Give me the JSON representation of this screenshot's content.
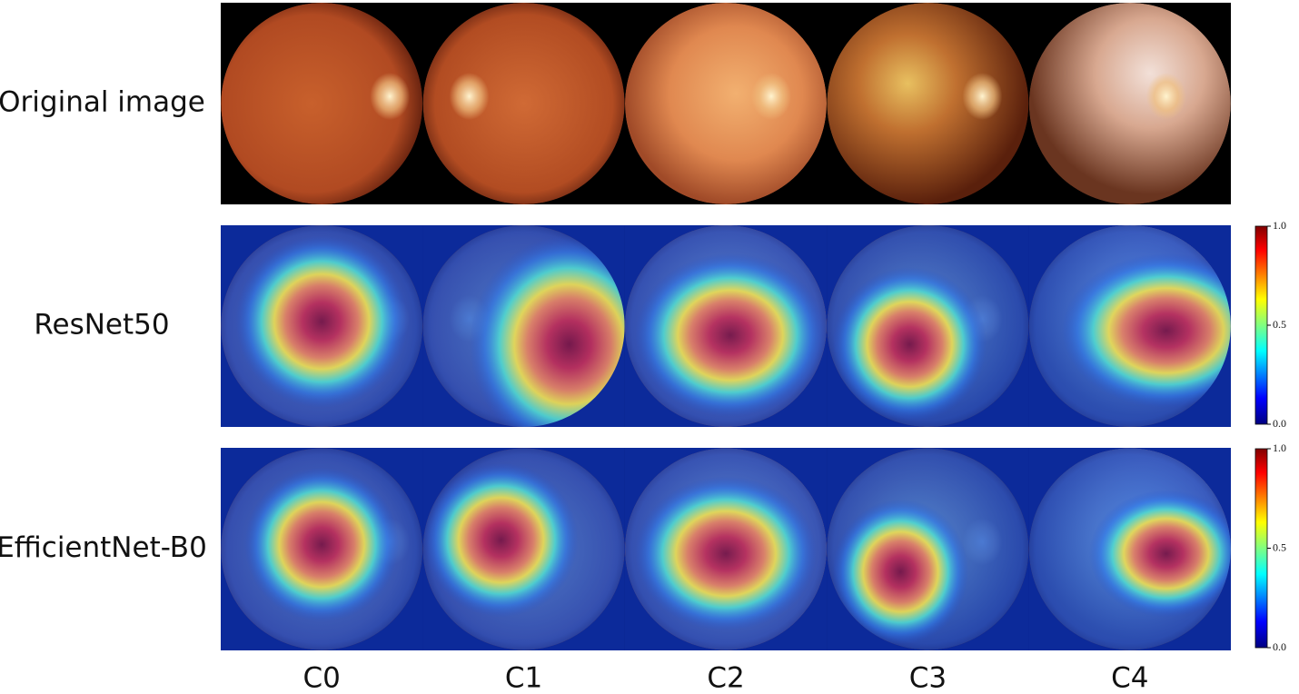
{
  "row_labels": [
    "Original image",
    "ResNet50",
    "EfficientNet-B0"
  ],
  "column_labels": [
    "C0",
    "C1",
    "C2",
    "C3",
    "C4"
  ],
  "colorbars": [
    {
      "range": [
        0,
        1
      ],
      "ticks": [
        {
          "value": 1,
          "label": "1.0"
        },
        {
          "value": 0.5,
          "label": "0.5"
        },
        {
          "value": 0,
          "label": "0.0"
        }
      ]
    },
    {
      "range": [
        0,
        1
      ],
      "ticks": [
        {
          "value": 1,
          "label": "1.0"
        },
        {
          "value": 0.5,
          "label": "0.5"
        },
        {
          "value": 0,
          "label": "0.0"
        }
      ]
    }
  ]
}
